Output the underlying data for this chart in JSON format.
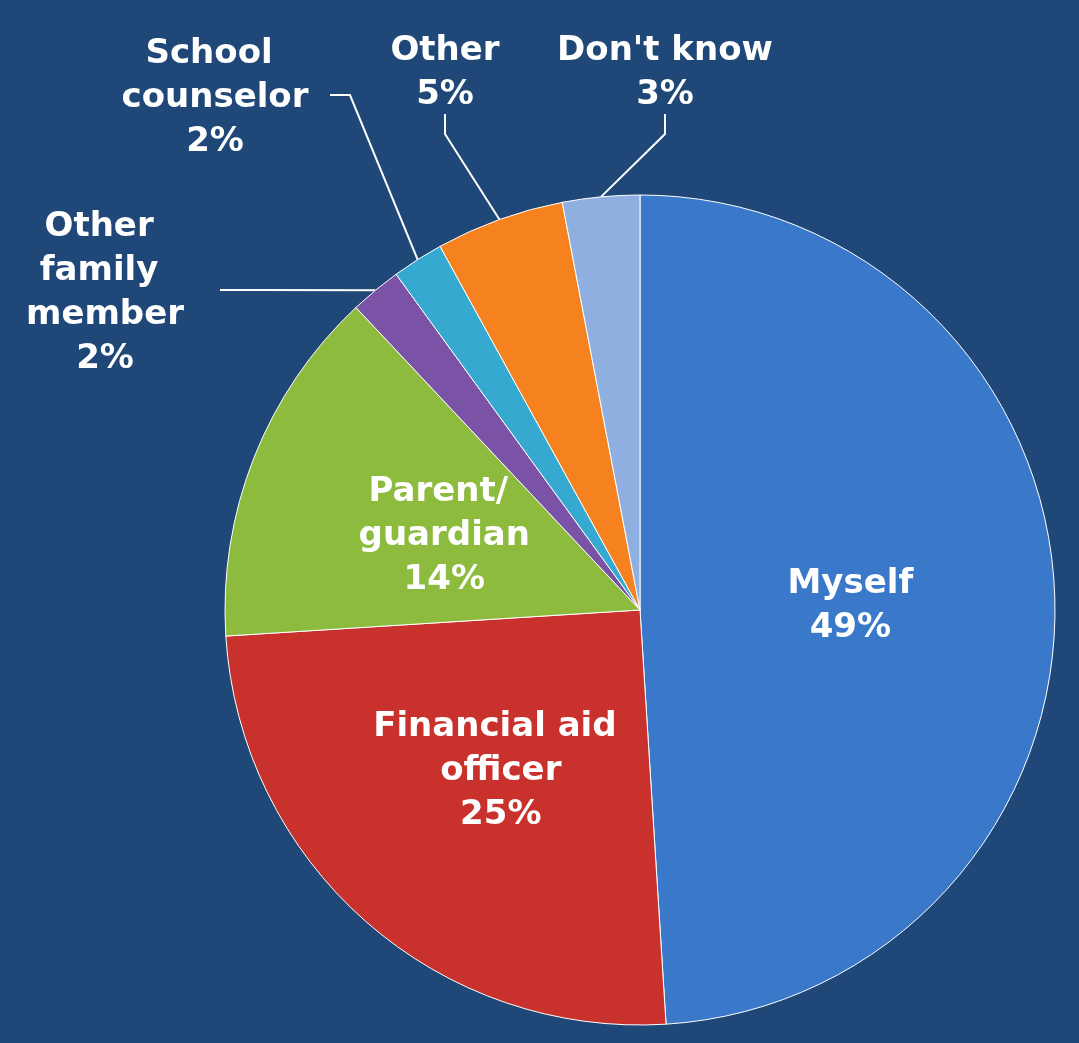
{
  "chart_data": {
    "type": "pie",
    "categories": [
      "Myself",
      "Financial aid officer",
      "Parent/ guardian",
      "Other family member",
      "School counselor",
      "Other",
      "Don't know"
    ],
    "values": [
      49,
      25,
      14,
      2,
      2,
      5,
      3
    ],
    "value_labels": [
      "49%",
      "25%",
      "14%",
      "2%",
      "2%",
      "5%",
      "3%"
    ],
    "colors": [
      "#3a78c9",
      "#c8312c",
      "#8dbb3d",
      "#7a52a6",
      "#35a9cf",
      "#f5811f",
      "#8eafe0"
    ]
  }
}
